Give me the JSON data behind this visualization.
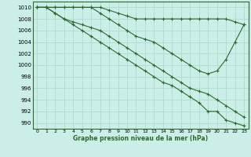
{
  "title": "Graphe pression niveau de la mer (hPa)",
  "background_color": "#cceee8",
  "grid_color": "#aaddcc",
  "line_color": "#2d6a2d",
  "xlim": [
    -0.5,
    23.5
  ],
  "ylim": [
    989,
    1011
  ],
  "yticks": [
    990,
    992,
    994,
    996,
    998,
    1000,
    1002,
    1004,
    1006,
    1008,
    1010
  ],
  "xticks": [
    0,
    1,
    2,
    3,
    4,
    5,
    6,
    7,
    8,
    9,
    10,
    11,
    12,
    13,
    14,
    15,
    16,
    17,
    18,
    19,
    20,
    21,
    22,
    23
  ],
  "series": [
    [
      1010,
      1010,
      1010,
      1010,
      1010,
      1010,
      1010,
      1010,
      1009.5,
      1009,
      1008.5,
      1008,
      1008,
      1008,
      1008,
      1008,
      1008,
      1008,
      1008,
      1008,
      1008,
      1008,
      1007.5,
      1007
    ],
    [
      1010,
      1010,
      1010,
      1010,
      1010,
      1010,
      1010,
      1009,
      1008,
      1007,
      1006,
      1005,
      1004.5,
      1004,
      1003,
      1002,
      1001,
      1000,
      999,
      998.5,
      999,
      1001,
      1004,
      1007
    ],
    [
      1010,
      1010,
      1009,
      1008,
      1007.5,
      1007,
      1006.5,
      1006,
      1005,
      1004,
      1003,
      1002,
      1001,
      1000,
      999,
      998,
      997,
      996,
      995.5,
      995,
      994,
      993,
      992,
      991
    ],
    [
      1010,
      1010,
      1009,
      1008,
      1007,
      1006,
      1005,
      1004,
      1003,
      1002,
      1001,
      1000,
      999,
      998,
      997,
      996.5,
      995.5,
      994.5,
      993.5,
      992,
      992,
      990.5,
      990,
      989.5
    ]
  ]
}
